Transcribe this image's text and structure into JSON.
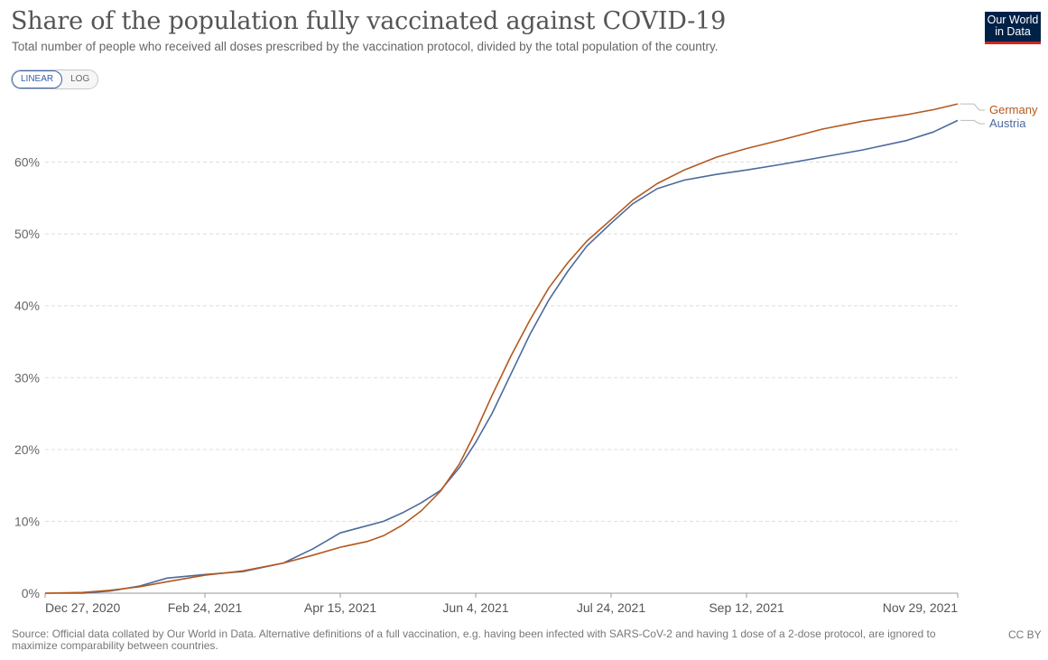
{
  "header": {
    "title": "Share of the population fully vaccinated against COVID-19",
    "subtitle": "Total number of people who received all doses prescribed by the vaccination protocol, divided by the total population of the country.",
    "logo_line1": "Our World",
    "logo_line2": "in Data"
  },
  "controls": {
    "linear_label": "LINEAR",
    "log_label": "LOG",
    "selected": "LINEAR"
  },
  "footer": {
    "source": "Source: Official data collated by Our World in Data. Alternative definitions of a full vaccination, e.g. having been infected with SARS-CoV-2 and having 1 dose of a 2-dose protocol, are ignored to maximize comparability between countries.",
    "license": "CC BY"
  },
  "chart_data": {
    "type": "line",
    "title": "Share of the population fully vaccinated against COVID-19",
    "xlabel": "",
    "ylabel": "",
    "x_ticks": [
      "Dec 27, 2020",
      "Feb 24, 2021",
      "Apr 15, 2021",
      "Jun 4, 2021",
      "Jul 24, 2021",
      "Sep 12, 2021",
      "Nov 29, 2021"
    ],
    "y_ticks": [
      "0%",
      "10%",
      "20%",
      "30%",
      "40%",
      "50%",
      "60%"
    ],
    "ylim": [
      0,
      70
    ],
    "grid": true,
    "legend": "right-end labels",
    "colors": {
      "Germany": "#b4581f",
      "Austria": "#4c6a9c"
    },
    "series": [
      {
        "name": "Germany",
        "points": [
          [
            "2020-12-27",
            0
          ],
          [
            "2021-01-10",
            0.1
          ],
          [
            "2021-01-20",
            0.4
          ],
          [
            "2021-01-31",
            0.9
          ],
          [
            "2021-02-10",
            1.6
          ],
          [
            "2021-02-24",
            2.5
          ],
          [
            "2021-03-10",
            3.1
          ],
          [
            "2021-03-25",
            4.2
          ],
          [
            "2021-04-05",
            5.3
          ],
          [
            "2021-04-15",
            6.4
          ],
          [
            "2021-04-25",
            7.2
          ],
          [
            "2021-05-01",
            8.0
          ],
          [
            "2021-05-08",
            9.5
          ],
          [
            "2021-05-15",
            11.5
          ],
          [
            "2021-05-22",
            14.2
          ],
          [
            "2021-05-29",
            18.0
          ],
          [
            "2021-06-04",
            22.5
          ],
          [
            "2021-06-10",
            27.5
          ],
          [
            "2021-06-17",
            33.0
          ],
          [
            "2021-06-24",
            38.0
          ],
          [
            "2021-07-01",
            42.5
          ],
          [
            "2021-07-08",
            46.0
          ],
          [
            "2021-07-15",
            49.0
          ],
          [
            "2021-07-24",
            52.0
          ],
          [
            "2021-08-01",
            54.7
          ],
          [
            "2021-08-10",
            57.0
          ],
          [
            "2021-08-20",
            58.9
          ],
          [
            "2021-09-01",
            60.7
          ],
          [
            "2021-09-12",
            61.9
          ],
          [
            "2021-09-25",
            63.1
          ],
          [
            "2021-10-10",
            64.6
          ],
          [
            "2021-10-25",
            65.7
          ],
          [
            "2021-11-10",
            66.6
          ],
          [
            "2021-11-20",
            67.3
          ],
          [
            "2021-11-29",
            68.1
          ]
        ]
      },
      {
        "name": "Austria",
        "points": [
          [
            "2020-12-27",
            0
          ],
          [
            "2021-01-10",
            0
          ],
          [
            "2021-01-20",
            0.3
          ],
          [
            "2021-01-31",
            1.0
          ],
          [
            "2021-02-10",
            2.1
          ],
          [
            "2021-02-24",
            2.6
          ],
          [
            "2021-03-10",
            3.0
          ],
          [
            "2021-03-25",
            4.2
          ],
          [
            "2021-04-05",
            6.2
          ],
          [
            "2021-04-15",
            8.4
          ],
          [
            "2021-04-25",
            9.4
          ],
          [
            "2021-05-01",
            10.0
          ],
          [
            "2021-05-08",
            11.2
          ],
          [
            "2021-05-15",
            12.6
          ],
          [
            "2021-05-22",
            14.3
          ],
          [
            "2021-05-29",
            17.5
          ],
          [
            "2021-06-04",
            21.0
          ],
          [
            "2021-06-10",
            25.0
          ],
          [
            "2021-06-17",
            30.5
          ],
          [
            "2021-06-24",
            36.0
          ],
          [
            "2021-07-01",
            40.8
          ],
          [
            "2021-07-08",
            44.8
          ],
          [
            "2021-07-15",
            48.3
          ],
          [
            "2021-07-24",
            51.5
          ],
          [
            "2021-08-01",
            54.2
          ],
          [
            "2021-08-10",
            56.3
          ],
          [
            "2021-08-20",
            57.5
          ],
          [
            "2021-09-01",
            58.3
          ],
          [
            "2021-09-12",
            58.9
          ],
          [
            "2021-09-25",
            59.7
          ],
          [
            "2021-10-10",
            60.7
          ],
          [
            "2021-10-25",
            61.7
          ],
          [
            "2021-11-10",
            63.0
          ],
          [
            "2021-11-20",
            64.2
          ],
          [
            "2021-11-29",
            65.8
          ]
        ]
      }
    ]
  }
}
